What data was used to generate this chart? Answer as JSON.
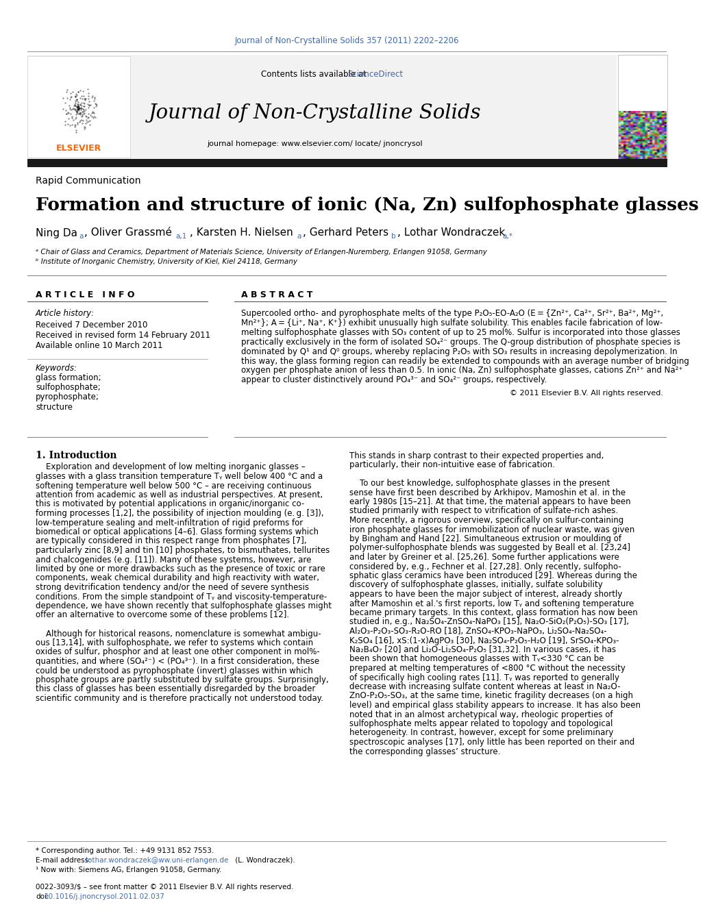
{
  "journal_ref": "Journal of Non-Crystalline Solids 357 (2011) 2202–2206",
  "contents_line": "Contents lists available at",
  "sciencedirect": "ScienceDirect",
  "journal_name": "Journal of Non-Crystalline Solids",
  "homepage_line": "journal homepage: www.elsevier.com/ locate/ jnoncrysol",
  "article_type": "Rapid Communication",
  "title": "Formation and structure of ionic (Na, Zn) sulfophosphate glasses",
  "affil_a": "ᵃ Chair of Glass and Ceramics, Department of Materials Science, University of Erlangen-Nuremberg, Erlangen 91058, Germany",
  "affil_b": "ᵇ Institute of Inorganic Chemistry, University of Kiel, Kiel 24118, Germany",
  "article_info_header": "A R T I C L E   I N F O",
  "article_history_header": "Article history:",
  "received": "Received 7 December 2010",
  "revised": "Received in revised form 14 February 2011",
  "available": "Available online 10 March 2011",
  "keywords_header": "Keywords:",
  "keywords": [
    "glass formation;",
    "sulfophosphate;",
    "pyrophosphate;",
    "structure"
  ],
  "abstract_header": "A B S T R A C T",
  "copyright": "© 2011 Elsevier B.V. All rights reserved.",
  "intro_header": "1. Introduction",
  "footnote_star": "* Corresponding author. Tel.: +49 9131 852 7553.",
  "footnote_email_pre": "E-mail address: ",
  "footnote_email_link": "lothar.wondraczek@ww.uni-erlangen.de",
  "footnote_email_post": " (L. Wondraczek).",
  "footnote_1": "¹ Now with: Siemens AG, Erlangen 91058, Germany.",
  "issn_line": "0022-3093/$ – see front matter © 2011 Elsevier B.V. All rights reserved.",
  "doi_pre": "doi:",
  "doi_link": "10.1016/j.jnoncrysol.2011.02.037",
  "bg_color": "#ffffff",
  "header_bg": "#f2f2f2",
  "link_color": "#4169aa",
  "thick_bar_color": "#1a1a1a",
  "elsevier_orange": "#FF6600",
  "abstract_lines": [
    "Supercooled ortho- and pyrophosphate melts of the type P₂O₅-EO-A₂O (E = {Zn²⁺, Ca²⁺, Sr²⁺, Ba²⁺, Mg²⁺,",
    "Mn²⁺}; A = {Li⁺, Na⁺, K⁺}) exhibit unusually high sulfate solubility. This enables facile fabrication of low-",
    "melting sulfophosphate glasses with SO₃ content of up to 25 mol%. Sulfur is incorporated into those glasses",
    "practically exclusively in the form of isolated SO₄²⁻ groups. The Q-group distribution of phosphate species is",
    "dominated by Q¹ and Q⁰ groups, whereby replacing P₂O₅ with SO₃ results in increasing depolymerization. In",
    "this way, the glass forming region can readily be extended to compounds with an average number of bridging",
    "oxygen per phosphate anion of less than 0.5. In ionic (Na, Zn) sulfophosphate glasses, cations Zn²⁺ and Na²⁺",
    "appear to cluster distinctively around PO₄³⁻ and SO₄²⁻ groups, respectively."
  ],
  "intro_col1_lines": [
    "    Exploration and development of low melting inorganic glasses –",
    "glasses with a glass transition temperature Tᵧ well below 400 °C and a",
    "softening temperature well below 500 °C – are receiving continuous",
    "attention from academic as well as industrial perspectives. At present,",
    "this is motivated by potential applications in organic/inorganic co-",
    "forming processes [1,2], the possibility of injection moulding (e. g. [3]),",
    "low-temperature sealing and melt-infiltration of rigid preforms for",
    "biomedical or optical applications [4–6]. Glass forming systems which",
    "are typically considered in this respect range from phosphates [7],",
    "particularly zinc [8,9] and tin [10] phosphates, to bismuthates, tellurites",
    "and chalcogenides (e.g. [11]). Many of these systems, however, are",
    "limited by one or more drawbacks such as the presence of toxic or rare",
    "components, weak chemical durability and high reactivity with water,",
    "strong devitrification tendency and/or the need of severe synthesis",
    "conditions. From the simple standpoint of Tᵧ and viscosity-temperature-",
    "dependence, we have shown recently that sulfophosphate glasses might",
    "offer an alternative to overcome some of these problems [12].",
    "",
    "    Although for historical reasons, nomenclature is somewhat ambigu-",
    "ous [13,14], with sulfophosphate, we refer to systems which contain",
    "oxides of sulfur, phosphor and at least one other component in mol%-",
    "quantities, and where (SO₄²⁻) < (PO₄³⁻). In a first consideration, these",
    "could be understood as pyrophosphate (invert) glasses within which",
    "phosphate groups are partly substituted by sulfate groups. Surprisingly,",
    "this class of glasses has been essentially disregarded by the broader",
    "scientific community and is therefore practically not understood today."
  ],
  "intro_col2_lines": [
    "This stands in sharp contrast to their expected properties and,",
    "particularly, their non-intuitive ease of fabrication.",
    "",
    "    To our best knowledge, sulfophosphate glasses in the present",
    "sense have first been described by Arkhipov, Mamoshin et al. in the",
    "early 1980s [15–21]. At that time, the material appears to have been",
    "studied primarily with respect to vitrification of sulfate-rich ashes.",
    "More recently, a rigorous overview, specifically on sulfur-containing",
    "iron phosphate glasses for immobilization of nuclear waste, was given",
    "by Bingham and Hand [22]. Simultaneous extrusion or moulding of",
    "polymer-sulfophosphate blends was suggested by Beall et al. [23,24]",
    "and later by Greiner et al. [25,26]. Some further applications were",
    "considered by, e.g., Fechner et al. [27,28]. Only recently, sulfopho-",
    "sphatic glass ceramics have been introduced [29]. Whereas during the",
    "discovery of sulfophosphate glasses, initially, sulfate solubility",
    "appears to have been the major subject of interest, already shortly",
    "after Mamoshin et al.'s first reports, low Tᵧ and softening temperature",
    "became primary targets. In this context, glass formation has now been",
    "studied in, e.g., Na₂SO₄-ZnSO₄-NaPO₃ [15], Na₂O-SiO₂(P₂O₅)-SO₃ [17],",
    "Al₂O₃-P₂O₃-SO₃-R₂O-RO [18], ZnSO₄-KPO₃-NaPO₃, Li₂SO₄-Na₂SO₄-",
    "K₂SO₄ [16], xS:(1-x)AgPO₃ [30], Na₂SO₄-P₂O₅-H₂O [19], SrSO₄-KPO₃-",
    "Na₂B₄O₇ [20] and Li₂O-Li₂SO₄-P₂O₅ [31,32]. In various cases, it has",
    "been shown that homogeneous glasses with Tᵧ<330 °C can be",
    "prepared at melting temperatures of <800 °C without the necessity",
    "of specifically high cooling rates [11]. Tᵧ was reported to generally",
    "decrease with increasing sulfate content whereas at least in Na₂O-",
    "ZnO-P₂O₅-SO₃, at the same time, kinetic fragility decreases (on a high",
    "level) and empirical glass stability appears to increase. It has also been",
    "noted that in an almost archetypical way, rheologic properties of",
    "sulfophosphate melts appear related to topology and topological",
    "heterogeneity. In contrast, however, except for some preliminary",
    "spectroscopic analyses [17], only little has been reported on their and",
    "the corresponding glasses’ structure."
  ]
}
